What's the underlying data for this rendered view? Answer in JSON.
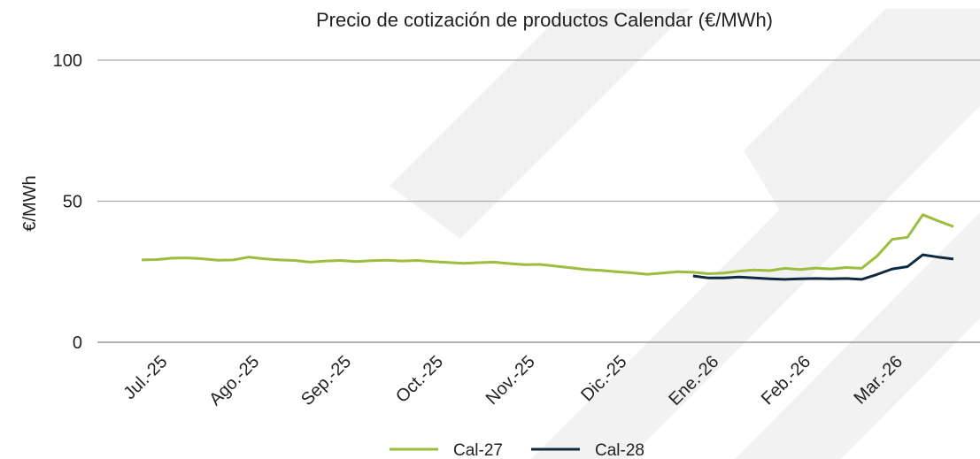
{
  "chart_data": {
    "type": "line",
    "title": "Precio de cotización de productos Calendar (€/MWh)",
    "y_label": "€/MWh",
    "categories": [
      "Jul.-25",
      null,
      null,
      null,
      null,
      null,
      "Ago.-25",
      null,
      null,
      null,
      null,
      null,
      "Sep.-25",
      null,
      null,
      null,
      null,
      null,
      "Oct.-25",
      null,
      null,
      null,
      null,
      null,
      "Nov.-25",
      null,
      null,
      null,
      null,
      null,
      "Dic.-25",
      null,
      null,
      null,
      null,
      null,
      "Ene.-26",
      null,
      null,
      null,
      null,
      null,
      "Feb.-26",
      null,
      null,
      null,
      null,
      null,
      "Mar.-26",
      null,
      null,
      null,
      null,
      null
    ],
    "series": [
      {
        "name": "Cal-27",
        "color": "#9dbd3e",
        "values": [
          29.2,
          29.3,
          29.8,
          29.9,
          29.6,
          29.1,
          29.2,
          30.2,
          29.6,
          29.2,
          29.0,
          28.4,
          28.8,
          29.0,
          28.6,
          28.9,
          29.1,
          28.8,
          29.0,
          28.6,
          28.3,
          28.0,
          28.2,
          28.4,
          27.9,
          27.5,
          27.6,
          27.0,
          26.4,
          25.8,
          25.5,
          25.0,
          24.6,
          24.1,
          24.5,
          25.0,
          24.8,
          24.3,
          24.5,
          25.2,
          25.6,
          25.4,
          26.2,
          25.8,
          26.3,
          26.0,
          26.5,
          26.2,
          30.5,
          36.5,
          37.2,
          45.2,
          43.0,
          41.0
        ]
      },
      {
        "name": "Cal-28",
        "color": "#0e2a40",
        "values": [
          null,
          null,
          null,
          null,
          null,
          null,
          null,
          null,
          null,
          null,
          null,
          null,
          null,
          null,
          null,
          null,
          null,
          null,
          null,
          null,
          null,
          null,
          null,
          null,
          null,
          null,
          null,
          null,
          null,
          null,
          null,
          null,
          null,
          null,
          null,
          null,
          23.5,
          22.8,
          22.8,
          23.1,
          22.8,
          22.5,
          22.3,
          22.5,
          22.6,
          22.5,
          22.6,
          22.3,
          24.0,
          26.0,
          26.8,
          31.0,
          30.2,
          29.5
        ]
      }
    ],
    "ylim": [
      0,
      100
    ],
    "yticks": [
      0,
      50,
      100
    ],
    "grid": true,
    "legend": "bottom"
  }
}
